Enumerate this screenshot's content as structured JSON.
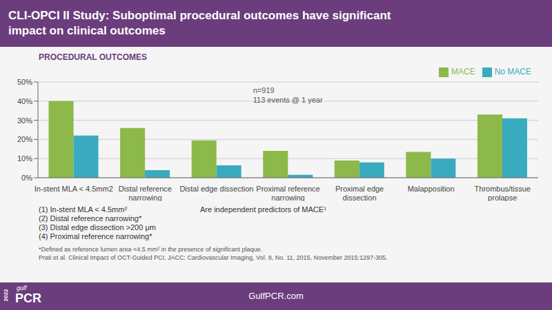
{
  "chart_data": {
    "type": "bar",
    "title": "CLI-OPCI II Study: Suboptimal procedural outcomes have significant\nimpact on clinical outcomes",
    "subtitle": "PROCEDURAL OUTCOMES",
    "categories": [
      "In-stent MLA < 4.5mm2",
      "Distal reference\nnarrowing",
      "Distal edge dissection",
      "Proximal reference\nnarrowing",
      "Proximal edge\ndissection",
      "Malapposition",
      "Thrombus/tissue\nprolapse"
    ],
    "series": [
      {
        "name": "MACE",
        "color": "#8db84a",
        "values": [
          40,
          26,
          19.5,
          14,
          9,
          13.5,
          33
        ]
      },
      {
        "name": "No MACE",
        "color": "#3aabbf",
        "values": [
          22,
          4,
          6.5,
          1.5,
          8,
          10,
          31
        ]
      }
    ],
    "ylim": [
      0,
      50
    ],
    "yticks": [
      {
        "value": 0,
        "label": "0%"
      },
      {
        "value": 10,
        "label": "10%"
      },
      {
        "value": 20,
        "label": "20%"
      },
      {
        "value": 30,
        "label": "30%"
      },
      {
        "value": 40,
        "label": "40%"
      },
      {
        "value": 50,
        "label": "50%"
      }
    ],
    "grid": true,
    "legend": "upper right",
    "annotations": [
      "n=919",
      "113 events @ 1 year",
      "(1) In-stent MLA < 4.5mm²",
      "(2) Distal reference narrowing*",
      "(3) Distal edge dissection >200 μm",
      "(4) Proximal reference narrowing*",
      "Are independent predictors of MACE¹",
      "*Defined as reference lumen area <4.5 mm² in the presence of significant plaque.",
      "Prati et al. Clinical Impact of OCT-Guided PCI, JACC: Cardiovascular Imaging, Vol. 8, No. 11, 2015, November 2015:1297-305.",
      "2022",
      "gulf",
      "PCR",
      "GulfPCR.com"
    ]
  }
}
